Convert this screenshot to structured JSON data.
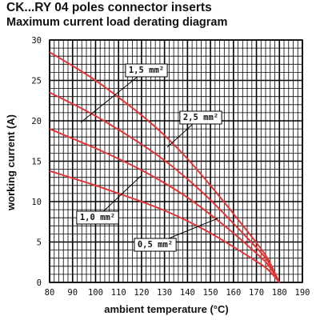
{
  "chart_data": {
    "type": "line",
    "title": "CK...RY 04 poles connector inserts",
    "subtitle": "Maximum current load derating diagram",
    "xlabel": "ambient temperature (°C)",
    "ylabel": "working current (A)",
    "xlim": [
      80,
      190
    ],
    "ylim": [
      0,
      30
    ],
    "xticks": [
      80,
      90,
      100,
      110,
      120,
      130,
      140,
      150,
      160,
      170,
      180,
      190
    ],
    "yticks": [
      0,
      5,
      10,
      15,
      20,
      25,
      30
    ],
    "grid": true,
    "series": [
      {
        "name": "1,5 mm²",
        "x": [
          80,
          90,
          100,
          110,
          120,
          130,
          140,
          150,
          160,
          170,
          175,
          180
        ],
        "y": [
          28.5,
          26.8,
          25.0,
          22.9,
          20.7,
          18.2,
          15.3,
          12.0,
          8.5,
          4.9,
          2.9,
          0
        ]
      },
      {
        "name": "2,5 mm²",
        "x": [
          80,
          90,
          100,
          110,
          120,
          130,
          140,
          150,
          160,
          170,
          175,
          180
        ],
        "y": [
          23.5,
          22.1,
          20.6,
          18.9,
          17.1,
          15.1,
          12.8,
          10.2,
          7.3,
          4.3,
          2.6,
          0
        ]
      },
      {
        "name": "1,0 mm²",
        "x": [
          80,
          90,
          100,
          110,
          120,
          130,
          140,
          150,
          160,
          170,
          175,
          180
        ],
        "y": [
          19.0,
          17.8,
          16.6,
          15.3,
          13.9,
          12.3,
          10.5,
          8.4,
          6.1,
          3.6,
          2.2,
          0
        ]
      },
      {
        "name": "0,5 mm²",
        "x": [
          80,
          90,
          100,
          110,
          120,
          130,
          140,
          150,
          160,
          170,
          175,
          180
        ],
        "y": [
          13.8,
          12.9,
          12.0,
          11.0,
          10.0,
          8.9,
          7.6,
          6.1,
          4.4,
          2.6,
          1.6,
          0
        ]
      }
    ],
    "colors": {
      "curve": "#e53535",
      "grid": "#000000",
      "text": "#111111"
    }
  }
}
